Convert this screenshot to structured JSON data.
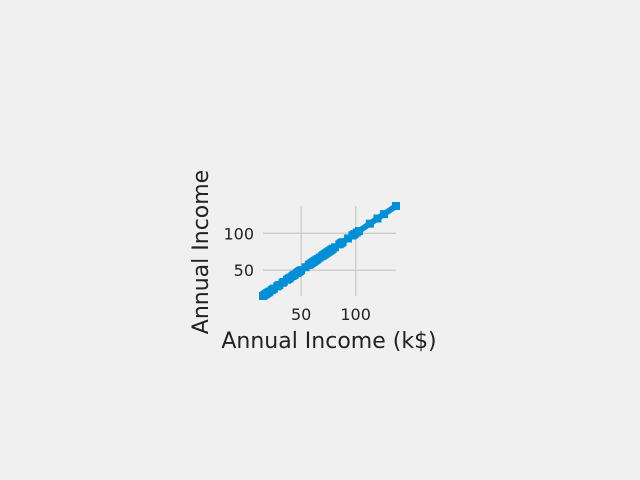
{
  "chart_data": {
    "type": "line",
    "title": "",
    "xlabel": "Annual Income (k$)",
    "ylabel": "Annual Income",
    "xlim": [
      15,
      137
    ],
    "ylim": [
      15,
      137
    ],
    "xticks": [
      50,
      100
    ],
    "yticks": [
      50,
      100
    ],
    "grid": true,
    "series": [
      {
        "color": "#008fd5",
        "x": [
          15,
          16,
          17,
          18,
          19,
          20,
          21,
          23,
          24,
          25,
          28,
          29,
          30,
          33,
          34,
          37,
          38,
          39,
          40,
          42,
          43,
          44,
          46,
          47,
          48,
          49,
          50,
          54,
          57,
          58,
          59,
          60,
          61,
          62,
          63,
          64,
          65,
          67,
          69,
          70,
          71,
          72,
          73,
          74,
          75,
          76,
          77,
          78,
          79,
          81,
          85,
          86,
          87,
          88,
          93,
          97,
          98,
          99,
          101,
          103,
          113,
          120,
          126,
          137
        ],
        "y": [
          15,
          16,
          17,
          18,
          19,
          20,
          21,
          23,
          24,
          25,
          28,
          29,
          30,
          33,
          34,
          37,
          38,
          39,
          40,
          42,
          43,
          44,
          46,
          47,
          48,
          49,
          50,
          54,
          57,
          58,
          59,
          60,
          61,
          62,
          63,
          64,
          65,
          67,
          69,
          70,
          71,
          72,
          73,
          74,
          75,
          76,
          77,
          78,
          79,
          81,
          85,
          86,
          87,
          88,
          93,
          97,
          98,
          99,
          101,
          103,
          113,
          120,
          126,
          137
        ]
      }
    ]
  }
}
